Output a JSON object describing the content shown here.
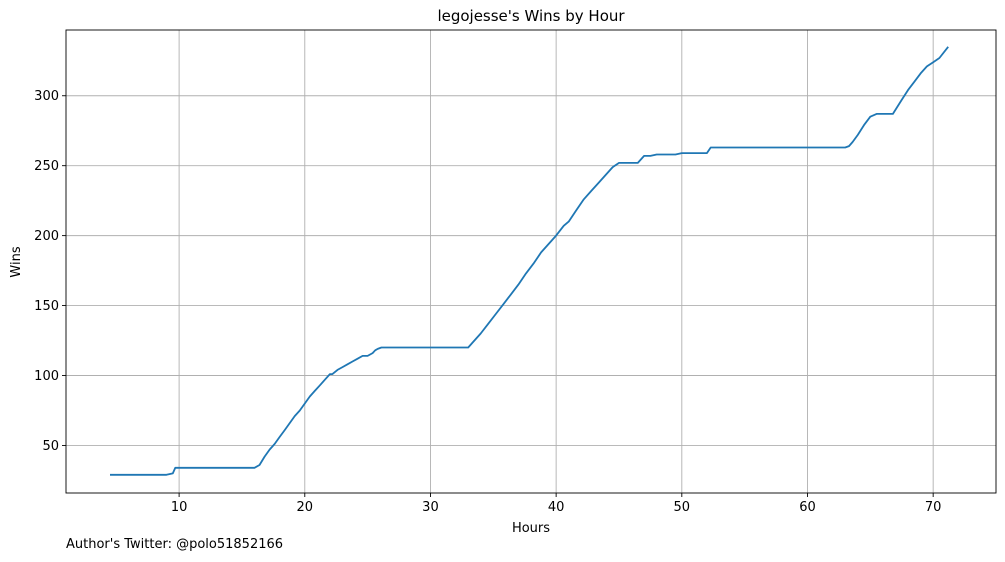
{
  "chart_data": {
    "type": "line",
    "title": "legojesse's Wins by Hour",
    "xlabel": "Hours",
    "ylabel": "Wins",
    "xlim": [
      1,
      75
    ],
    "ylim": [
      16,
      347
    ],
    "xticks": [
      10,
      20,
      30,
      40,
      50,
      60,
      70
    ],
    "yticks": [
      50,
      100,
      150,
      200,
      250,
      300
    ],
    "grid": true,
    "color": "#1f77b4",
    "series": [
      {
        "x": [
          4.5,
          9.0,
          9.5,
          9.7,
          16.0,
          16.4,
          16.8,
          17.2,
          17.6,
          18.0,
          18.4,
          18.8,
          19.2,
          19.6,
          20.0,
          20.4,
          20.8,
          21.2,
          21.6,
          22.0,
          22.2,
          22.6,
          23.0,
          23.4,
          23.8,
          24.2,
          24.6,
          25.0,
          25.4,
          25.6,
          25.8,
          26.1,
          26.5,
          33.0,
          33.4,
          34.0,
          34.6,
          35.2,
          35.8,
          36.4,
          37.0,
          37.6,
          38.2,
          38.8,
          39.4,
          40.0,
          40.6,
          41.0,
          41.6,
          42.2,
          42.8,
          43.4,
          44.0,
          44.5,
          45.0,
          45.5,
          46.5,
          47.0,
          47.5,
          48.0,
          49.5,
          50.0,
          52.0,
          52.3,
          63.0,
          63.3,
          63.6,
          64.0,
          64.5,
          65.0,
          65.5,
          66.0,
          66.8,
          67.5,
          68.0,
          68.5,
          69.0,
          69.5,
          70.0,
          70.5,
          71.2
        ],
        "y": [
          29,
          29,
          30,
          34,
          34,
          36,
          42,
          47,
          51,
          56,
          61,
          66,
          71,
          75,
          80,
          85,
          89,
          93,
          97,
          101,
          101,
          104,
          106,
          108,
          110,
          112,
          114,
          114,
          116,
          118,
          119,
          120,
          120,
          120,
          124,
          130,
          137,
          144,
          151,
          158,
          165,
          173,
          180,
          188,
          194,
          200,
          207,
          210,
          218,
          226,
          232,
          238,
          244,
          249,
          252,
          252,
          252,
          257,
          257,
          258,
          258,
          259,
          259,
          263,
          263,
          264,
          267,
          272,
          279,
          285,
          287,
          287,
          287,
          297,
          304,
          310,
          316,
          321,
          324,
          327,
          335
        ]
      }
    ]
  },
  "footnote": "Author's Twitter: @polo51852166"
}
